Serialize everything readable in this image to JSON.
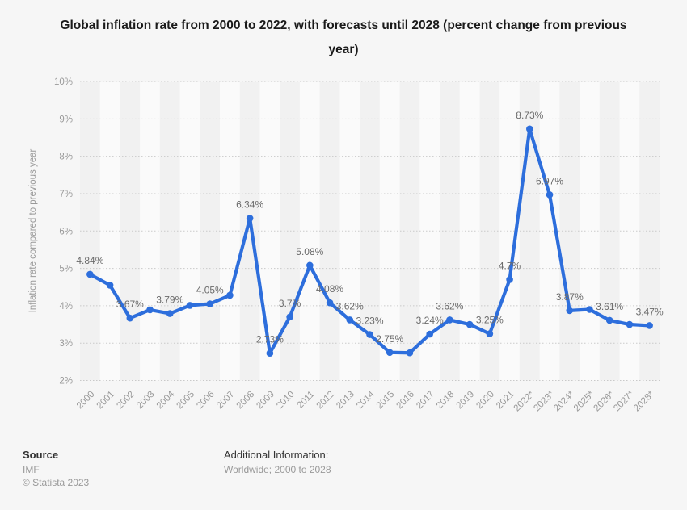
{
  "title": "Global inflation rate from 2000 to 2022, with forecasts until 2028 (percent change from previous year)",
  "footer": {
    "source_heading": "Source",
    "source_name": "IMF",
    "copyright": "© Statista 2023",
    "additional_heading": "Additional Information:",
    "additional_text": "Worldwide; 2000 to 2028"
  },
  "colors": {
    "line": "#2d6edc",
    "point_label": "#6b6b6b",
    "tick_label": "#999999",
    "gridline": "#c9c9c9",
    "stripe_even": "#f1f1f1",
    "stripe_odd": "#fafafa",
    "background": "#f6f6f6",
    "title_text": "#1a1a1a"
  },
  "chart_data": {
    "type": "line",
    "title": "Global inflation rate from 2000 to 2022, with forecasts until 2028 (percent change from previous year)",
    "xlabel": "",
    "ylabel": "Inflation rate compared to previous year",
    "ylim": [
      2,
      10
    ],
    "ytick_step": 1,
    "ytick_suffix": "%",
    "grid": "horizontal dotted lines, alternating vertical column stripes",
    "legend": "none",
    "categories": [
      "2000",
      "2001",
      "2002",
      "2003",
      "2004",
      "2005",
      "2006",
      "2007",
      "2008",
      "2009",
      "2010",
      "2011",
      "2012",
      "2013",
      "2014",
      "2015",
      "2016",
      "2017",
      "2018",
      "2019",
      "2020",
      "2021",
      "2022*",
      "2023*",
      "2024*",
      "2025*",
      "2026*",
      "2027*",
      "2028*"
    ],
    "values": [
      4.84,
      4.55,
      3.67,
      3.89,
      3.79,
      4.01,
      4.05,
      4.28,
      6.34,
      2.73,
      3.7,
      5.08,
      4.08,
      3.62,
      3.23,
      2.75,
      2.74,
      3.24,
      3.62,
      3.5,
      3.25,
      4.7,
      8.73,
      6.97,
      3.87,
      3.9,
      3.61,
      3.5,
      3.47
    ],
    "point_labels": [
      "4.84%",
      "",
      "3.67%",
      "",
      "3.79%",
      "",
      "4.05%",
      "",
      "6.34%",
      "2.73%",
      "3.7%",
      "5.08%",
      "4.08%",
      "3.62%",
      "3.23%",
      "2.75%",
      "",
      "3.24%",
      "3.62%",
      "",
      "3.25%",
      "4.7%",
      "8.73%",
      "6.97%",
      "3.87%",
      "",
      "3.61%",
      "",
      "3.47%"
    ]
  }
}
